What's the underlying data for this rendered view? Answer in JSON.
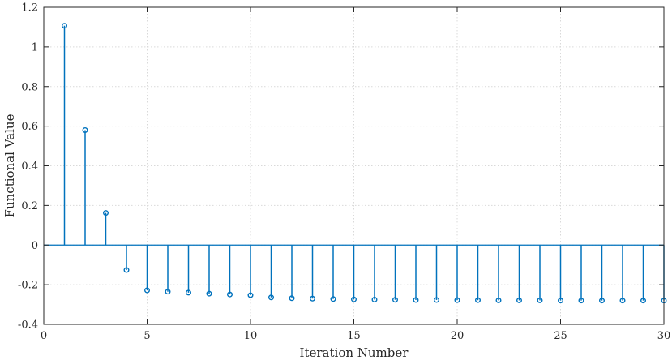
{
  "chart_data": {
    "type": "stem",
    "title": "",
    "xlabel": "Iteration Number",
    "ylabel": "Functional Value",
    "xlim": [
      0,
      30
    ],
    "ylim": [
      -0.4,
      1.2
    ],
    "xticks": [
      0,
      5,
      10,
      15,
      20,
      25,
      30
    ],
    "yticks": [
      -0.4,
      -0.2,
      0,
      0.2,
      0.4,
      0.6,
      0.8,
      1,
      1.2
    ],
    "xtick_labels": [
      "0",
      "5",
      "10",
      "15",
      "20",
      "25",
      "30"
    ],
    "ytick_labels": [
      "-0.4",
      "-0.2",
      "0",
      "0.2",
      "0.4",
      "0.6",
      "0.8",
      "1",
      "1.2"
    ],
    "grid": true,
    "color": "#0072BD",
    "series": [
      {
        "x": [
          1,
          2,
          3,
          4,
          5,
          6,
          7,
          8,
          9,
          10,
          11,
          12,
          13,
          14,
          15,
          16,
          17,
          18,
          19,
          20,
          21,
          22,
          23,
          24,
          25,
          26,
          27,
          28,
          29,
          30
        ],
        "values": [
          1.107,
          0.58,
          0.162,
          -0.126,
          -0.228,
          -0.235,
          -0.24,
          -0.245,
          -0.249,
          -0.253,
          -0.264,
          -0.268,
          -0.27,
          -0.272,
          -0.274,
          -0.275,
          -0.276,
          -0.277,
          -0.277,
          -0.278,
          -0.278,
          -0.279,
          -0.279,
          -0.279,
          -0.28,
          -0.28,
          -0.28,
          -0.28,
          -0.28,
          -0.28
        ]
      }
    ]
  }
}
